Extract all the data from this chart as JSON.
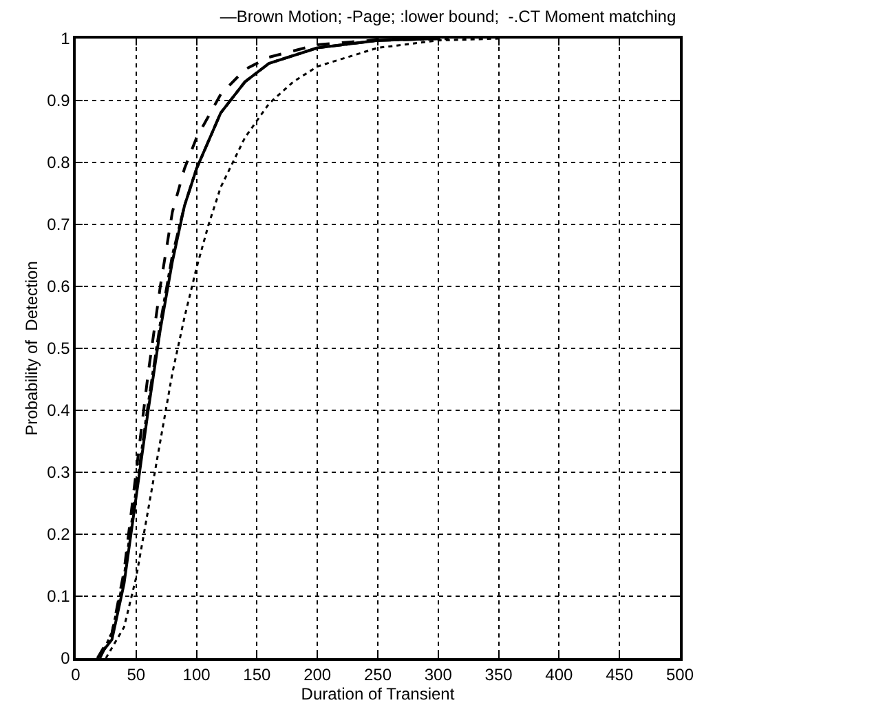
{
  "chart_data": {
    "type": "line",
    "title": "—Brown Motion; -Page; :lower bound;  -.CT Moment matching",
    "xlabel": "Duration of Transient",
    "ylabel": "Probability of  Detection",
    "xlim": [
      0,
      500
    ],
    "xticks": [
      0,
      50,
      100,
      150,
      200,
      250,
      300,
      350,
      400,
      450,
      500
    ],
    "ylim": [
      0,
      1
    ],
    "yticks": [
      0,
      0.1,
      0.2,
      0.3,
      0.4,
      0.5,
      0.6,
      0.7,
      0.8,
      0.9,
      1
    ],
    "grid": true,
    "marker": "none",
    "series": [
      {
        "color": "#000000",
        "line_style": "solid",
        "x": [
          18,
          30,
          40,
          50,
          60,
          70,
          80,
          90,
          100,
          120,
          140,
          160,
          200,
          250,
          300
        ],
        "values": [
          0,
          0.03,
          0.12,
          0.26,
          0.4,
          0.53,
          0.64,
          0.73,
          0.79,
          0.88,
          0.93,
          0.96,
          0.985,
          0.997,
          1
        ]
      },
      {
        "color": "#000000",
        "line_style": "dashed",
        "x": [
          18,
          30,
          40,
          50,
          60,
          70,
          80,
          90,
          100,
          120,
          140,
          160,
          200,
          250,
          290
        ],
        "values": [
          0,
          0.04,
          0.14,
          0.3,
          0.46,
          0.6,
          0.72,
          0.79,
          0.84,
          0.91,
          0.95,
          0.97,
          0.99,
          0.998,
          1
        ]
      },
      {
        "color": "#000000",
        "line_style": "dotted",
        "x": [
          25,
          40,
          50,
          60,
          70,
          80,
          90,
          100,
          110,
          120,
          140,
          160,
          180,
          200,
          250,
          300,
          350
        ],
        "values": [
          0,
          0.05,
          0.13,
          0.24,
          0.35,
          0.46,
          0.55,
          0.63,
          0.7,
          0.76,
          0.84,
          0.895,
          0.93,
          0.955,
          0.985,
          0.997,
          1
        ]
      },
      {
        "color": "#000000",
        "line_style": "dashdot",
        "x": [
          20,
          30,
          40,
          50,
          60,
          70,
          80,
          90,
          100,
          120,
          140,
          160,
          200,
          250,
          310
        ],
        "values": [
          0,
          0.04,
          0.13,
          0.27,
          0.41,
          0.54,
          0.65,
          0.73,
          0.79,
          0.88,
          0.93,
          0.96,
          0.985,
          0.997,
          1
        ]
      }
    ]
  }
}
